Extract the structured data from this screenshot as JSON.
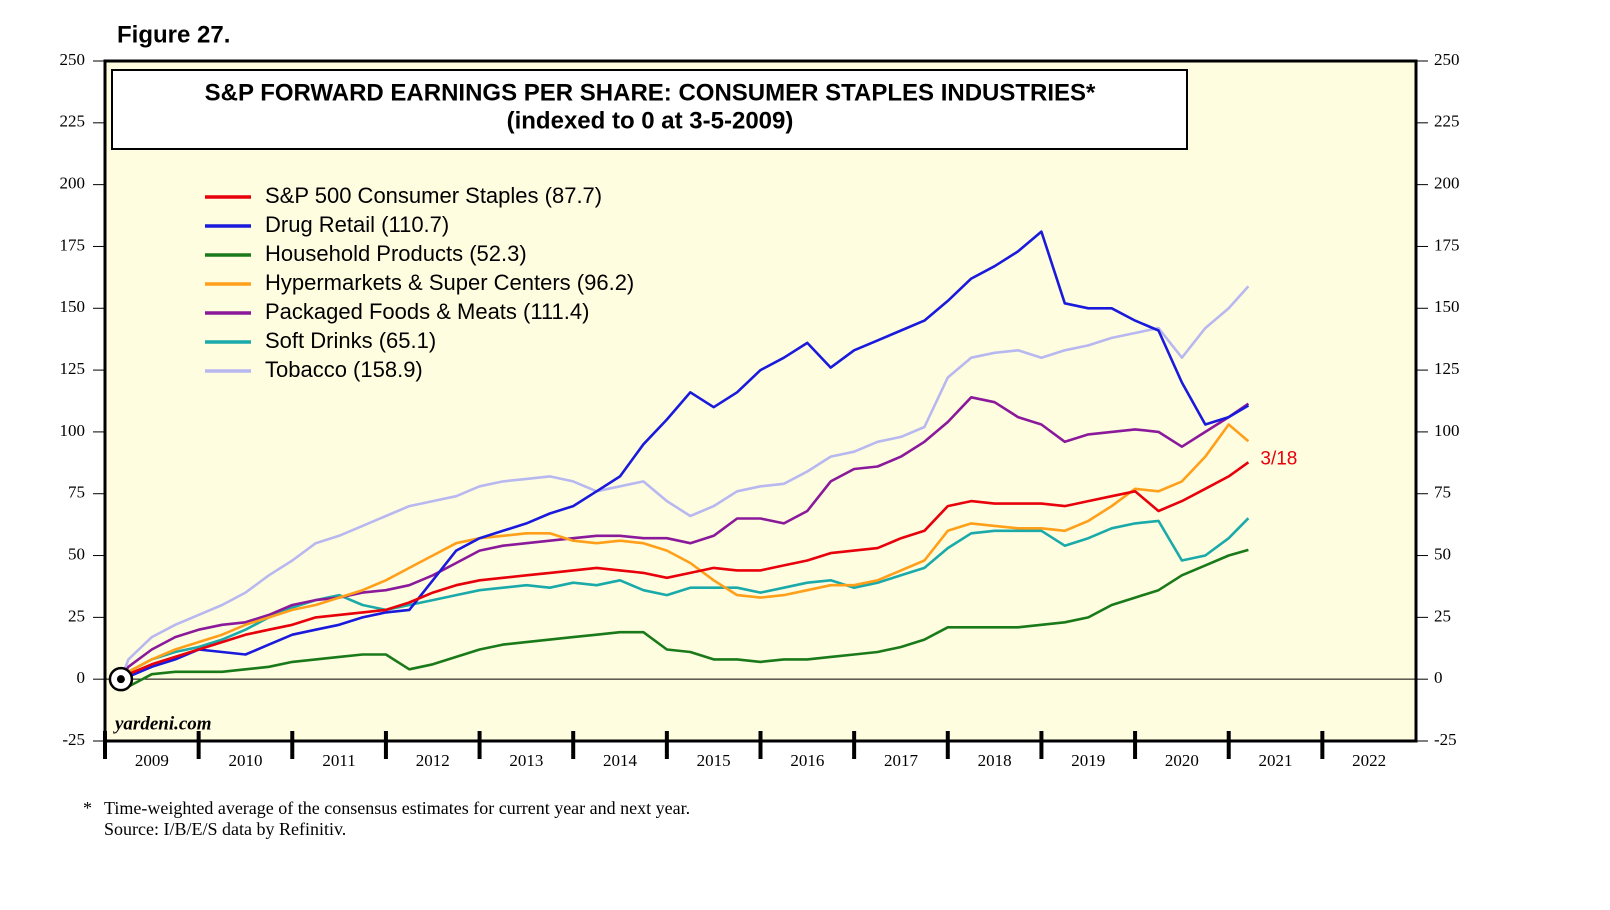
{
  "chart_data": {
    "type": "line",
    "figure_label": "Figure 27.",
    "title": "S&P FORWARD EARNINGS PER SHARE: CONSUMER STAPLES INDUSTRIES*",
    "subtitle": "(indexed to 0 at 3-5-2009)",
    "x": [
      2009.17,
      2009.25,
      2009.5,
      2009.75,
      2010,
      2010.25,
      2010.5,
      2010.75,
      2011,
      2011.25,
      2011.5,
      2011.75,
      2012,
      2012.25,
      2012.5,
      2012.75,
      2013,
      2013.25,
      2013.5,
      2013.75,
      2014,
      2014.25,
      2014.5,
      2014.75,
      2015,
      2015.25,
      2015.5,
      2015.75,
      2016,
      2016.25,
      2016.5,
      2016.75,
      2017,
      2017.25,
      2017.5,
      2017.75,
      2018,
      2018.25,
      2018.5,
      2018.75,
      2019,
      2019.25,
      2019.5,
      2019.75,
      2020,
      2020.25,
      2020.5,
      2020.75,
      2021,
      2021.21
    ],
    "series": [
      {
        "name": "S&P 500 Consumer Staples (87.7)",
        "color": "#e8000b",
        "values": [
          0,
          2,
          6,
          9,
          12,
          15,
          18,
          20,
          22,
          25,
          26,
          27,
          28,
          31,
          35,
          38,
          40,
          41,
          42,
          43,
          44,
          45,
          44,
          43,
          41,
          43,
          45,
          44,
          44,
          46,
          48,
          51,
          52,
          53,
          57,
          60,
          70,
          72,
          71,
          71,
          71,
          70,
          72,
          74,
          76,
          68,
          72,
          77,
          82,
          87.7
        ]
      },
      {
        "name": "Drug Retail (110.7)",
        "color": "#1a1adc",
        "values": [
          0,
          1,
          5,
          8,
          12,
          11,
          10,
          14,
          18,
          20,
          22,
          25,
          27,
          28,
          40,
          52,
          57,
          60,
          63,
          67,
          70,
          76,
          82,
          95,
          105,
          116,
          110,
          116,
          125,
          130,
          136,
          126,
          133,
          137,
          141,
          145,
          153,
          162,
          167,
          173,
          181,
          152,
          150,
          150,
          145,
          141,
          120,
          103,
          106,
          110.7
        ]
      },
      {
        "name": "Household Products (52.3)",
        "color": "#1a7a1a",
        "values": [
          0,
          -3,
          2,
          3,
          3,
          3,
          4,
          5,
          7,
          8,
          9,
          10,
          10,
          4,
          6,
          9,
          12,
          14,
          15,
          16,
          17,
          18,
          19,
          19,
          12,
          11,
          8,
          8,
          7,
          8,
          8,
          9,
          10,
          11,
          13,
          16,
          21,
          21,
          21,
          21,
          22,
          23,
          25,
          30,
          33,
          36,
          42,
          46,
          50,
          52.3
        ]
      },
      {
        "name": "Hypermarkets & Super Centers (96.2)",
        "color": "#ff9f1a",
        "values": [
          0,
          3,
          8,
          12,
          15,
          18,
          22,
          25,
          28,
          30,
          33,
          36,
          40,
          45,
          50,
          55,
          57,
          58,
          59,
          59,
          56,
          55,
          56,
          55,
          52,
          47,
          40,
          34,
          33,
          34,
          36,
          38,
          38,
          40,
          44,
          48,
          60,
          63,
          62,
          61,
          61,
          60,
          64,
          70,
          77,
          76,
          80,
          90,
          103,
          96.2
        ]
      },
      {
        "name": "Packaged Foods & Meats (111.4)",
        "color": "#8b1a9b",
        "values": [
          0,
          5,
          12,
          17,
          20,
          22,
          23,
          26,
          30,
          32,
          33,
          35,
          36,
          38,
          42,
          47,
          52,
          54,
          55,
          56,
          57,
          58,
          58,
          57,
          57,
          55,
          58,
          65,
          65,
          63,
          68,
          80,
          85,
          86,
          90,
          96,
          104,
          114,
          112,
          106,
          103,
          96,
          99,
          100,
          101,
          100,
          94,
          100,
          106,
          111.4
        ]
      },
      {
        "name": "Soft Drinks (65.1)",
        "color": "#1aaaaa",
        "values": [
          0,
          3,
          8,
          11,
          13,
          16,
          20,
          25,
          29,
          32,
          34,
          30,
          28,
          30,
          32,
          34,
          36,
          37,
          38,
          37,
          39,
          38,
          40,
          36,
          34,
          37,
          37,
          37,
          35,
          37,
          39,
          40,
          37,
          39,
          42,
          45,
          53,
          59,
          60,
          60,
          60,
          54,
          57,
          61,
          63,
          64,
          48,
          50,
          57,
          65.1
        ]
      },
      {
        "name": "Tobacco (158.9)",
        "color": "#b8b8f0",
        "values": [
          0,
          8,
          17,
          22,
          26,
          30,
          35,
          42,
          48,
          55,
          58,
          62,
          66,
          70,
          72,
          74,
          78,
          80,
          81,
          82,
          80,
          76,
          78,
          80,
          72,
          66,
          70,
          76,
          78,
          79,
          84,
          90,
          92,
          96,
          98,
          102,
          122,
          130,
          132,
          133,
          130,
          133,
          135,
          138,
          140,
          142,
          130,
          142,
          150,
          158.9
        ]
      }
    ],
    "xlim": [
      2009,
      2023
    ],
    "xticks": [
      2009,
      2010,
      2011,
      2012,
      2013,
      2014,
      2015,
      2016,
      2017,
      2018,
      2019,
      2020,
      2021,
      2022
    ],
    "ylim": [
      -25,
      250
    ],
    "yticks": [
      -25,
      0,
      25,
      50,
      75,
      100,
      125,
      150,
      175,
      200,
      225,
      250
    ],
    "y2lim": [
      -25,
      250
    ],
    "y2ticks": [
      -25,
      0,
      25,
      50,
      75,
      100,
      125,
      150,
      175,
      200,
      225,
      250
    ],
    "end_label": "3/18",
    "watermark": "yardeni.com",
    "footnote_marker": "*",
    "footnote": "Time-weighted average of the consensus estimates for current year and next year.",
    "source": "Source: I/B/E/S data by Refinitiv.",
    "legend": "upper left",
    "background": "#fffde0"
  }
}
